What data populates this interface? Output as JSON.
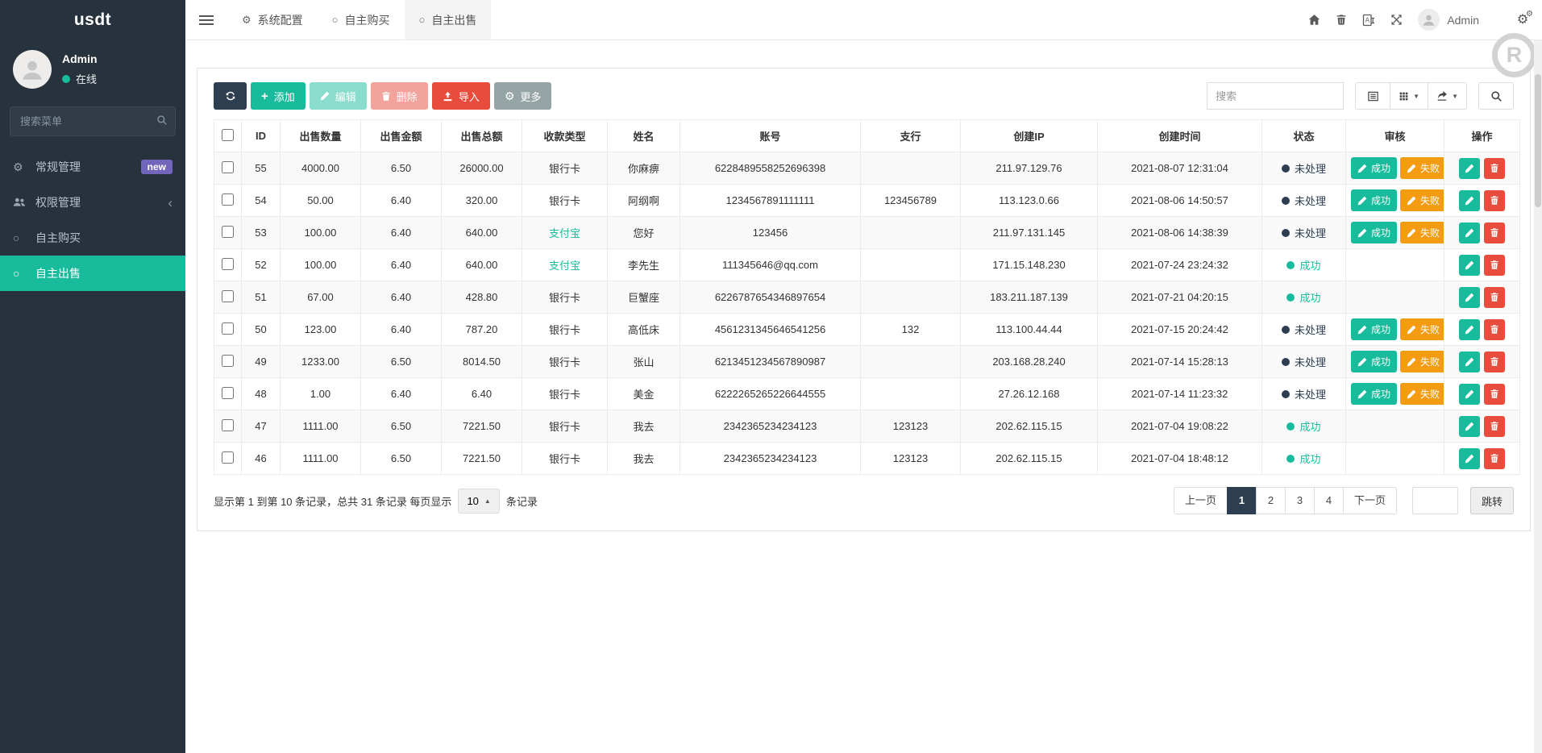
{
  "brand": {
    "title": "usdt"
  },
  "user": {
    "name": "Admin",
    "status": "在线"
  },
  "sidebar": {
    "search_placeholder": "搜索菜单",
    "items": [
      {
        "label": "常规管理",
        "icon": "gears",
        "badge": "new"
      },
      {
        "label": "权限管理",
        "icon": "users",
        "chevron": "‹"
      },
      {
        "label": "自主购买",
        "icon": "circle"
      },
      {
        "label": "自主出售",
        "icon": "circle",
        "active": true
      }
    ]
  },
  "navbar": {
    "tabs": [
      {
        "label": "系统配置",
        "icon": "gear"
      },
      {
        "label": "自主购买",
        "icon": "circle"
      },
      {
        "label": "自主出售",
        "icon": "circle",
        "active": true
      }
    ],
    "user_name": "Admin",
    "logo_letter": "R"
  },
  "toolbar": {
    "add_label": "添加",
    "edit_label": "编辑",
    "delete_label": "删除",
    "import_label": "导入",
    "more_label": "更多",
    "search_placeholder": "搜索"
  },
  "table": {
    "headers": [
      "ID",
      "出售数量",
      "出售金额",
      "出售总额",
      "收款类型",
      "姓名",
      "账号",
      "支行",
      "创建IP",
      "创建时间",
      "状态",
      "审核",
      "操作"
    ],
    "status_labels": {
      "pending": "未处理",
      "success": "成功"
    },
    "audit_labels": {
      "pass": "成功",
      "fail": "失败"
    },
    "rows": [
      {
        "id": "55",
        "qty": "4000.00",
        "price": "6.50",
        "total": "26000.00",
        "pay_type": "银行卡",
        "pay_highlight": false,
        "name": "你麻痹",
        "account": "6228489558252696398",
        "branch": "",
        "ip": "211.97.129.76",
        "created": "2021-08-07 12:31:04",
        "status": "pending"
      },
      {
        "id": "54",
        "qty": "50.00",
        "price": "6.40",
        "total": "320.00",
        "pay_type": "银行卡",
        "pay_highlight": false,
        "name": "阿纲啊",
        "account": "1234567891111111",
        "branch": "123456789",
        "ip": "113.123.0.66",
        "created": "2021-08-06 14:50:57",
        "status": "pending"
      },
      {
        "id": "53",
        "qty": "100.00",
        "price": "6.40",
        "total": "640.00",
        "pay_type": "支付宝",
        "pay_highlight": true,
        "name": "您好",
        "account": "123456",
        "branch": "",
        "ip": "211.97.131.145",
        "created": "2021-08-06 14:38:39",
        "status": "pending"
      },
      {
        "id": "52",
        "qty": "100.00",
        "price": "6.40",
        "total": "640.00",
        "pay_type": "支付宝",
        "pay_highlight": true,
        "name": "李先生",
        "account": "111345646@qq.com",
        "branch": "",
        "ip": "171.15.148.230",
        "created": "2021-07-24 23:24:32",
        "status": "success"
      },
      {
        "id": "51",
        "qty": "67.00",
        "price": "6.40",
        "total": "428.80",
        "pay_type": "银行卡",
        "pay_highlight": false,
        "name": "巨蟹座",
        "account": "6226787654346897654",
        "branch": "",
        "ip": "183.211.187.139",
        "created": "2021-07-21 04:20:15",
        "status": "success"
      },
      {
        "id": "50",
        "qty": "123.00",
        "price": "6.40",
        "total": "787.20",
        "pay_type": "银行卡",
        "pay_highlight": false,
        "name": "高低床",
        "account": "4561231345646541256",
        "branch": "132",
        "ip": "113.100.44.44",
        "created": "2021-07-15 20:24:42",
        "status": "pending"
      },
      {
        "id": "49",
        "qty": "1233.00",
        "price": "6.50",
        "total": "8014.50",
        "pay_type": "银行卡",
        "pay_highlight": false,
        "name": "张山",
        "account": "6213451234567890987",
        "branch": "",
        "ip": "203.168.28.240",
        "created": "2021-07-14 15:28:13",
        "status": "pending"
      },
      {
        "id": "48",
        "qty": "1.00",
        "price": "6.40",
        "total": "6.40",
        "pay_type": "银行卡",
        "pay_highlight": false,
        "name": "美金",
        "account": "6222265265226644555",
        "branch": "",
        "ip": "27.26.12.168",
        "created": "2021-07-14 11:23:32",
        "status": "pending"
      },
      {
        "id": "47",
        "qty": "1111.00",
        "price": "6.50",
        "total": "7221.50",
        "pay_type": "银行卡",
        "pay_highlight": false,
        "name": "我去",
        "account": "2342365234234123",
        "branch": "123123",
        "ip": "202.62.115.15",
        "created": "2021-07-04 19:08:22",
        "status": "success"
      },
      {
        "id": "46",
        "qty": "1111.00",
        "price": "6.50",
        "total": "7221.50",
        "pay_type": "银行卡",
        "pay_highlight": false,
        "name": "我去",
        "account": "2342365234234123",
        "branch": "123123",
        "ip": "202.62.115.15",
        "created": "2021-07-04 18:48:12",
        "status": "success"
      }
    ]
  },
  "pagination": {
    "info_prefix": "显示第 1 到第 10 条记录，总共 31 条记录 每页显示",
    "page_size": "10",
    "info_suffix": "条记录",
    "prev_label": "上一页",
    "pages": [
      "1",
      "2",
      "3",
      "4"
    ],
    "active_page": "1",
    "next_label": "下一页",
    "jump_label": "跳转"
  },
  "colors": {
    "accent_green": "#18bc9c",
    "dark_navy": "#2c3e50",
    "danger_red": "#e74c3c",
    "warning_orange": "#f39c12",
    "muted_gray": "#95a5a6",
    "badge_purple": "#7165bc",
    "sidebar_bg": "#28323c"
  }
}
